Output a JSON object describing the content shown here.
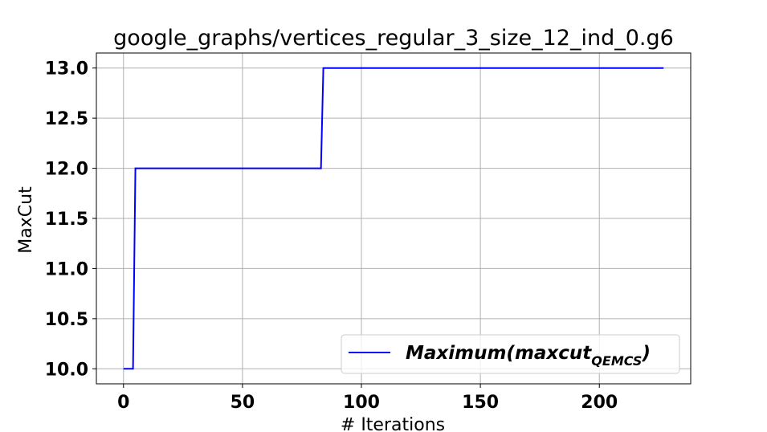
{
  "chart_data": {
    "type": "line",
    "title": "google_graphs/vertices_regular_3_size_12_ind_0.g6",
    "xlabel": "# Iterations",
    "ylabel": "MaxCut",
    "xlim": [
      -11.4,
      238.4
    ],
    "ylim": [
      9.85,
      13.15
    ],
    "xticks": [
      0,
      50,
      100,
      150,
      200
    ],
    "yticks": [
      10.0,
      10.5,
      11.0,
      11.5,
      12.0,
      12.5,
      13.0
    ],
    "xtick_labels": [
      "0",
      "50",
      "100",
      "150",
      "200"
    ],
    "ytick_labels": [
      "10.0",
      "10.5",
      "11.0",
      "11.5",
      "12.0",
      "12.5",
      "13.0"
    ],
    "grid": true,
    "legend_position": "lower-right",
    "series": [
      {
        "name": "Maximum(maxcut_QEMCS)",
        "color": "#0000ff",
        "x": [
          0,
          4,
          5,
          83,
          84,
          227
        ],
        "y": [
          10,
          10,
          12,
          12,
          13,
          13
        ]
      }
    ]
  },
  "legend": {
    "main": "Maximum(maxcut",
    "sub": "QEMCS",
    "close": ")"
  }
}
